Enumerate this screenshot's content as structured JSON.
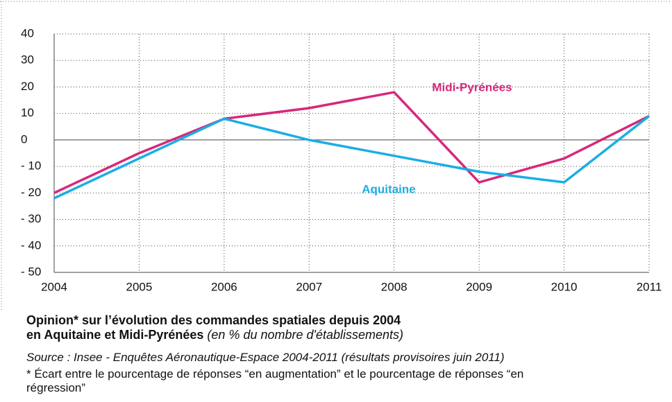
{
  "chart_data": {
    "type": "line",
    "x": [
      2004,
      2005,
      2006,
      2007,
      2008,
      2009,
      2010,
      2011
    ],
    "xlim": [
      2004,
      2011
    ],
    "xticks": [
      2004,
      2005,
      2006,
      2007,
      2008,
      2009,
      2010,
      2011
    ],
    "ylim": [
      -50,
      40
    ],
    "yticks": [
      {
        "value": -50,
        "label": "- 50"
      },
      {
        "value": -40,
        "label": "- 40"
      },
      {
        "value": -30,
        "label": "- 30"
      },
      {
        "value": -20,
        "label": "- 20"
      },
      {
        "value": -10,
        "label": "- 10"
      },
      0,
      10,
      20,
      30,
      40
    ],
    "grid": true,
    "series": [
      {
        "name": "Midi-Pyrénées",
        "color": "#d6287a",
        "values": [
          -20,
          -5,
          8,
          12,
          18,
          -16,
          -7,
          9
        ]
      },
      {
        "name": "Aquitaine",
        "color": "#1aaee5",
        "values": [
          -22,
          -7,
          8,
          0,
          -6,
          -12,
          -16,
          9
        ]
      }
    ],
    "title": [
      "Opinion* sur l’évolution des commandes spatiales depuis 2004",
      "en Aquitaine et Midi-Pyrénées"
    ],
    "subtitle": "(en % du nombre d'établissements)",
    "source": "Source : Insee - Enquêtes Aéronautique-Espace 2004-2011 (résultats provisoires juin 2011)",
    "footnote": "* Écart entre le pourcentage de réponses “en augmentation” et le pourcentage de réponses “en régression”"
  }
}
